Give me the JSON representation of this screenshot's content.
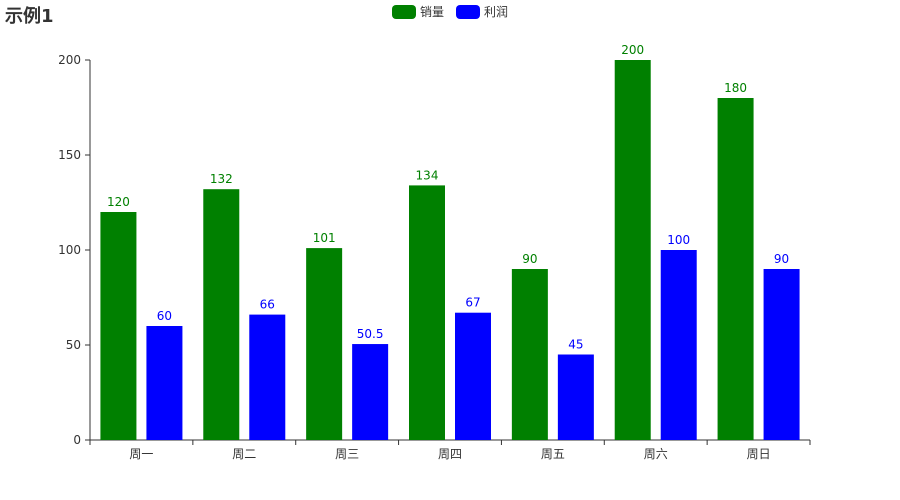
{
  "chart_data": {
    "type": "bar",
    "title": "示例1",
    "categories": [
      "周一",
      "周二",
      "周三",
      "周四",
      "周五",
      "周六",
      "周日"
    ],
    "series": [
      {
        "name": "销量",
        "color": "#008000",
        "values": [
          120,
          132,
          101,
          134,
          90,
          200,
          180
        ]
      },
      {
        "name": "利润",
        "color": "#0000ff",
        "values": [
          60,
          66,
          50.5,
          67,
          45,
          100,
          90
        ]
      }
    ],
    "ylim": [
      0,
      200
    ],
    "yticks": [
      0,
      50,
      100,
      150,
      200
    ],
    "grid": false,
    "legend_position": "top-center",
    "data_labels": true
  }
}
